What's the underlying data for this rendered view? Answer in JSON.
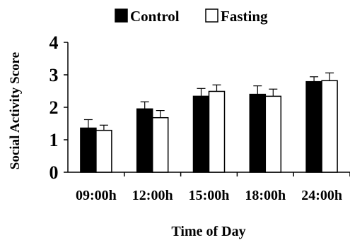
{
  "chart_data": {
    "type": "bar",
    "categories": [
      "09:00h",
      "12:00h",
      "15:00h",
      "18:00h",
      "24:00h"
    ],
    "series": [
      {
        "name": "Control",
        "values": [
          1.36,
          1.95,
          2.34,
          2.4,
          2.79
        ],
        "errors": [
          0.26,
          0.22,
          0.24,
          0.26,
          0.15
        ],
        "color": "#000000"
      },
      {
        "name": "Fasting",
        "values": [
          1.29,
          1.68,
          2.49,
          2.34,
          2.82
        ],
        "errors": [
          0.16,
          0.22,
          0.2,
          0.22,
          0.24
        ],
        "color": "#ffffff"
      }
    ],
    "xlabel": "Time of Day",
    "ylabel": "Social Activity Score",
    "ylim": [
      0,
      4
    ],
    "yticks": [
      "0",
      "1",
      "2",
      "3",
      "4"
    ],
    "grid": false,
    "legend_position": "top"
  }
}
